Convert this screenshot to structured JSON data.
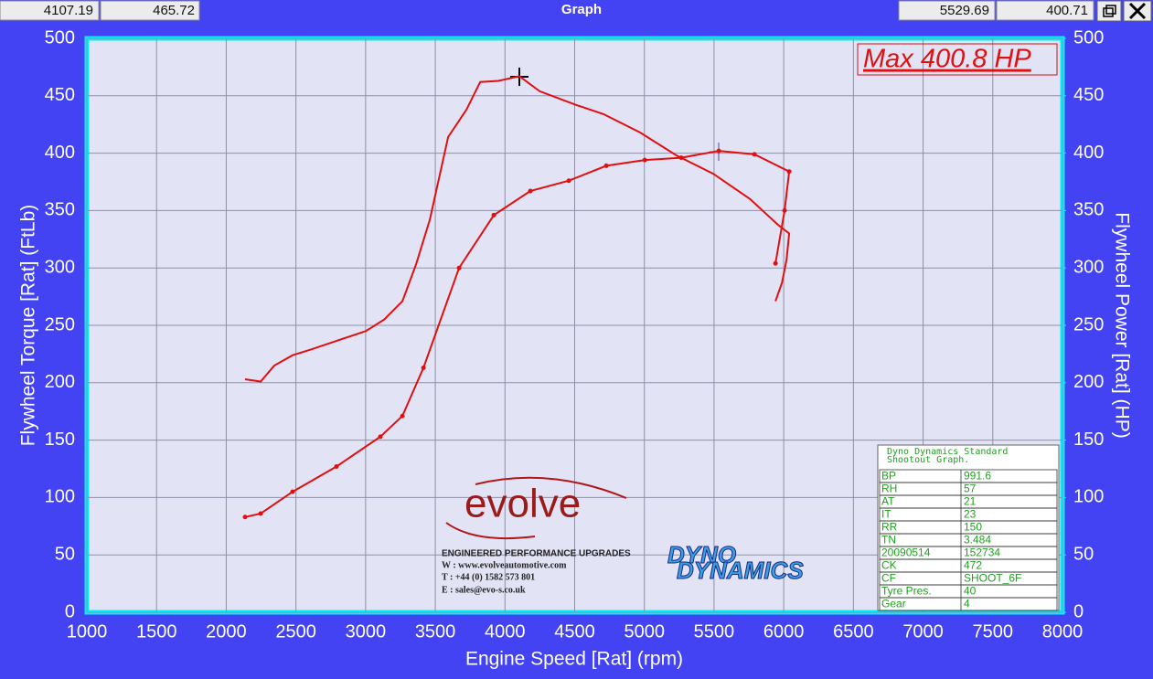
{
  "window": {
    "title": "Graph",
    "readouts": [
      "4107.19",
      "465.72",
      "5529.69",
      "400.71"
    ]
  },
  "chart_data": {
    "type": "line",
    "xlabel": "Engine Speed [Rat] (rpm)",
    "ylabel": "Flywheel Torque [Rat] (FtLb)",
    "y2label": "Flywheel Power [Rat] (HP)",
    "annotation": "Max 400.8 HP",
    "xlim": [
      1000,
      8000
    ],
    "xticks": [
      1000,
      1500,
      2000,
      2500,
      3000,
      3500,
      4000,
      4500,
      5000,
      5500,
      6000,
      6500,
      7000,
      7500,
      8000
    ],
    "ylim": [
      0,
      500
    ],
    "yticks": [
      0,
      50,
      100,
      150,
      200,
      250,
      300,
      350,
      400,
      450,
      500
    ],
    "y2lim": [
      0,
      500
    ],
    "y2ticks": [
      0,
      50,
      100,
      150,
      200,
      250,
      300,
      350,
      400,
      450,
      500
    ],
    "grid": true,
    "series": [
      {
        "color": "#e01010",
        "markers": false,
        "x": [
          2135,
          2247,
          2345,
          2476,
          2608,
          2805,
          3001,
          3133,
          3264,
          3362,
          3461,
          3592,
          3724,
          3822,
          3953,
          4104,
          4248,
          4510,
          4707,
          4970,
          5231,
          5495,
          5758,
          5955,
          6039,
          6020,
          5987,
          5941
        ],
        "values": [
          203,
          201,
          215,
          224,
          229,
          237,
          245,
          255,
          271,
          303,
          342,
          414,
          438,
          462,
          463,
          467,
          454,
          442,
          434,
          418,
          398,
          382,
          360,
          338,
          330,
          307,
          287,
          271
        ]
      },
      {
        "color": "#e01010",
        "markers": true,
        "axis": "y2",
        "x": [
          2135,
          2247,
          2476,
          2791,
          3106,
          3264,
          3415,
          3671,
          3920,
          4182,
          4458,
          4727,
          5003,
          5265,
          5534,
          5790,
          6039,
          6006,
          5941
        ],
        "values": [
          83,
          86,
          105,
          127,
          153,
          171,
          213,
          300,
          346,
          367,
          376,
          389,
          394,
          396,
          402,
          399,
          384,
          350,
          304
        ]
      }
    ]
  },
  "logos": {
    "evolve": {
      "name": "evolve",
      "lines": [
        "ENGINEERED PERFORMANCE UPGRADES",
        "W : www.evolveautomotive.com",
        "T : +44 (0) 1582 573 801",
        "E : sales@evo-s.co.uk"
      ]
    },
    "dyno": [
      "DYNO",
      "DYNAMICS"
    ]
  },
  "info_table": {
    "title": [
      "Dyno Dynamics Standard",
      "Shootout Graph."
    ],
    "rows": [
      [
        "BP",
        "991.6"
      ],
      [
        "RH",
        "57"
      ],
      [
        "AT",
        "21"
      ],
      [
        "IT",
        "23"
      ],
      [
        "RR",
        "150"
      ],
      [
        "TN",
        "3.484"
      ],
      [
        "20090514",
        "152734"
      ],
      [
        "CK",
        "472"
      ],
      [
        "CF",
        "SHOOT_6F"
      ],
      [
        "Tyre Pres.",
        "40"
      ],
      [
        "Gear",
        "4"
      ]
    ]
  }
}
